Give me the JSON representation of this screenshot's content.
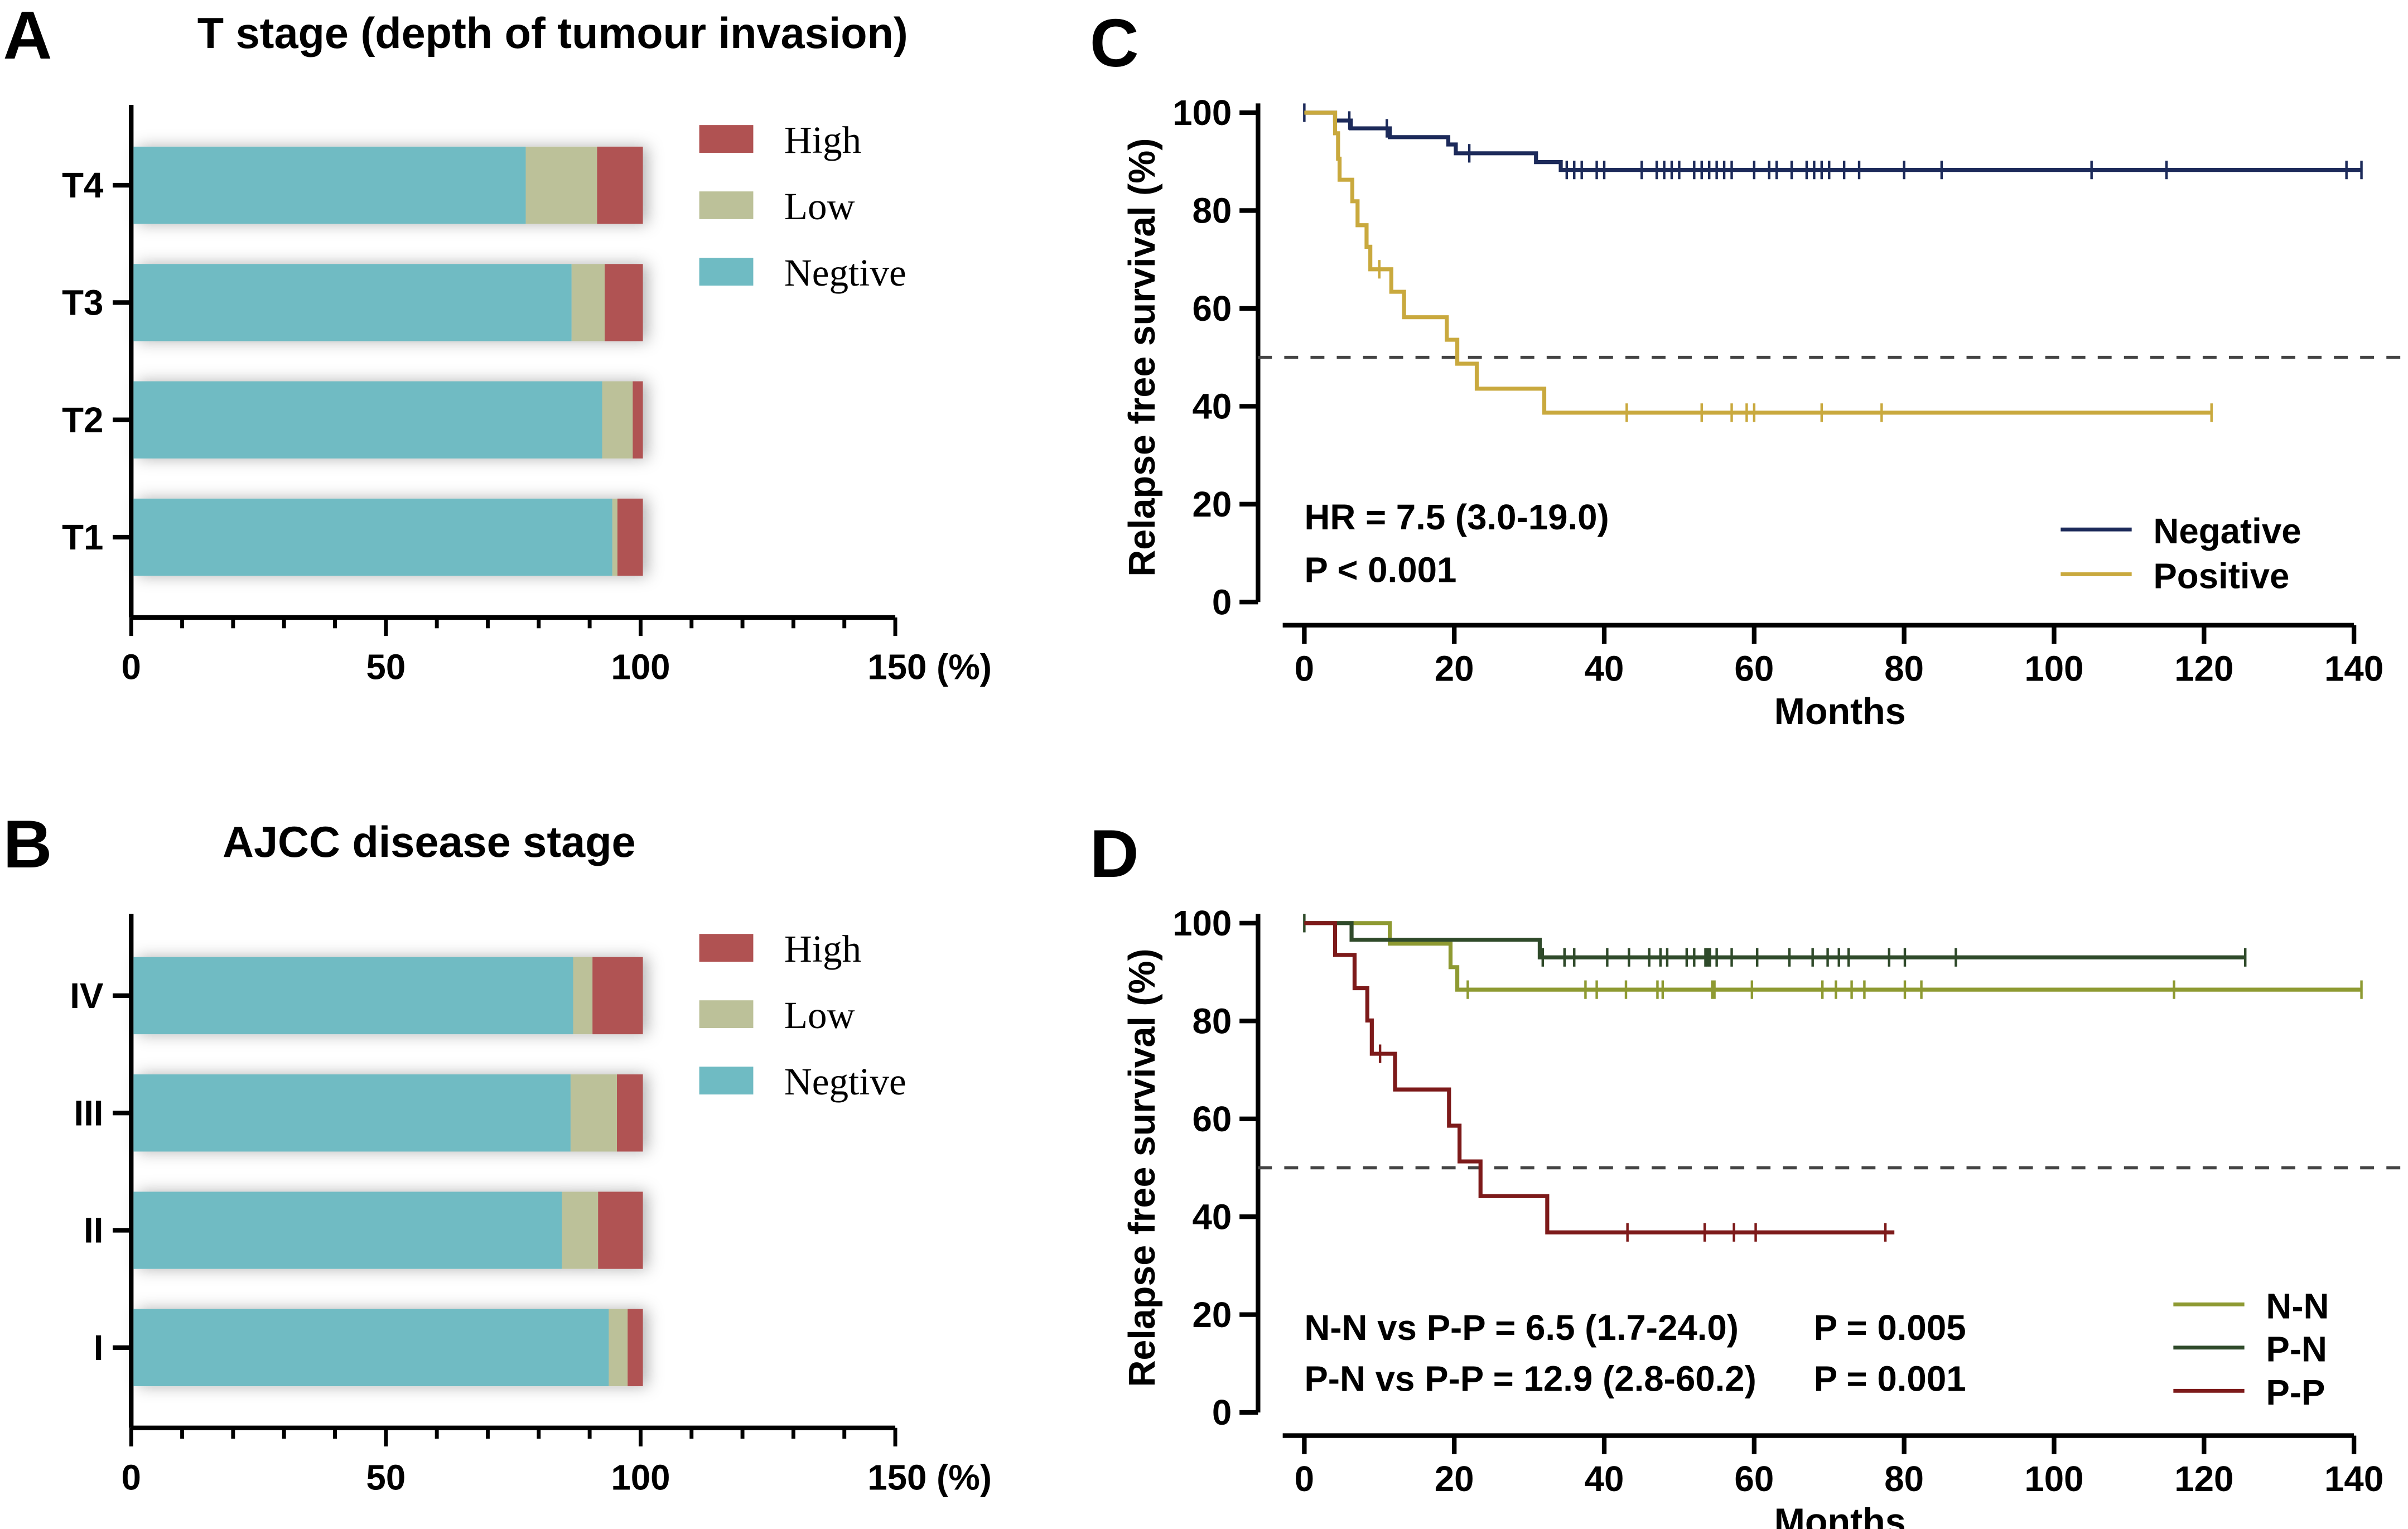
{
  "chart_data": [
    {
      "type": "bar",
      "orientation": "horizontal",
      "stacked": true,
      "panel_label": "A",
      "title": "T stage (depth of tumour invasion)",
      "categories": [
        "T4",
        "T3",
        "T2",
        "T1"
      ],
      "series": [
        {
          "name": "Negtive",
          "color": "#6fbbc3",
          "values": [
            77,
            86,
            92,
            94
          ]
        },
        {
          "name": "Low",
          "color": "#bcc199",
          "values": [
            14,
            6.5,
            6,
            1
          ]
        },
        {
          "name": "High",
          "color": "#b05252",
          "values": [
            9,
            7.5,
            2,
            5
          ]
        }
      ],
      "legend": [
        "High",
        "Low",
        "Negtive"
      ],
      "legend_position": "top-right",
      "xlim": [
        0,
        150
      ],
      "xticks": [
        0,
        50,
        100,
        150
      ],
      "xtick_labels": [
        "0",
        "50",
        "100",
        "150 (%)"
      ],
      "xlabel": "",
      "ylabel": ""
    },
    {
      "type": "bar",
      "orientation": "horizontal",
      "stacked": true,
      "panel_label": "B",
      "title": "AJCC disease stage",
      "categories": [
        "IV",
        "III",
        "II",
        "I"
      ],
      "series": [
        {
          "name": "Negtive",
          "color": "#6fbbc3",
          "values": [
            86.3,
            85.8,
            84.1,
            93.3
          ]
        },
        {
          "name": "Low",
          "color": "#bcc199",
          "values": [
            3.8,
            9.1,
            7.1,
            3.7
          ]
        },
        {
          "name": "High",
          "color": "#b05252",
          "values": [
            9.9,
            5.1,
            8.8,
            3.0
          ]
        }
      ],
      "legend": [
        "High",
        "Low",
        "Negtive"
      ],
      "legend_position": "top-right",
      "xlim": [
        0,
        150
      ],
      "xticks": [
        0,
        50,
        100,
        150
      ],
      "xtick_labels": [
        "0",
        "50",
        "100",
        "150 (%)"
      ],
      "xlabel": "",
      "ylabel": ""
    },
    {
      "type": "line",
      "subtype": "kaplan-meier",
      "panel_label": "C",
      "xlabel": "Months",
      "ylabel": "Relapse free survival (%)",
      "xlim": [
        0,
        140
      ],
      "ylim": [
        0,
        100
      ],
      "xticks": [
        0,
        20,
        40,
        60,
        80,
        100,
        120,
        140
      ],
      "yticks": [
        0,
        20,
        40,
        60,
        80,
        100
      ],
      "reference_line": 50,
      "annotations": [
        "HR = 7.5 (3.0-19.0)",
        "P < 0.001"
      ],
      "legend_position": "bottom-right",
      "series": [
        {
          "name": "Negative",
          "color": "#1c2a5a",
          "steps": [
            [
              4.1,
              98.4
            ],
            [
              6.2,
              96.8
            ],
            [
              11.4,
              95
            ],
            [
              19.2,
              93.5
            ],
            [
              20.2,
              91.7
            ],
            [
              30.9,
              89.9
            ],
            [
              34.2,
              88.3
            ]
          ],
          "end": 141,
          "censored": [
            0,
            6,
            11,
            22,
            35,
            36,
            37,
            39,
            40,
            45,
            47,
            48,
            49,
            50,
            52,
            53,
            54,
            55,
            56,
            57,
            60,
            62,
            63,
            65,
            67,
            68,
            69,
            70,
            72,
            74,
            80,
            85,
            105,
            115,
            139,
            141
          ]
        },
        {
          "name": "Positive",
          "color": "#c9a93e",
          "steps": [
            [
              4.1,
              95.8
            ],
            [
              4.5,
              90.6
            ],
            [
              4.7,
              86.3
            ],
            [
              6.4,
              81.9
            ],
            [
              7.1,
              77
            ],
            [
              8.3,
              72.6
            ],
            [
              8.8,
              68
            ],
            [
              11.6,
              63.4
            ],
            [
              13.3,
              58.2
            ],
            [
              19,
              53.6
            ],
            [
              20.4,
              48.7
            ],
            [
              23,
              43.6
            ],
            [
              32,
              38.7
            ]
          ],
          "end": 121,
          "censored": [
            10,
            43,
            53,
            57,
            59,
            60,
            69,
            77,
            121
          ]
        }
      ]
    },
    {
      "type": "line",
      "subtype": "kaplan-meier",
      "panel_label": "D",
      "xlabel": "Months",
      "ylabel": "Relapse free survival (%)",
      "xlim": [
        0,
        140
      ],
      "ylim": [
        0,
        100
      ],
      "xticks": [
        0,
        20,
        40,
        60,
        80,
        100,
        120,
        140
      ],
      "yticks": [
        0,
        20,
        40,
        60,
        80,
        100
      ],
      "reference_line": 50,
      "annotations": [
        "N-N vs P-P = 6.5 (1.7-24.0)",
        "P = 0.005",
        "P-N vs P-P = 12.9 (2.8-60.2)",
        "P = 0.001"
      ],
      "legend_position": "bottom-right",
      "series": [
        {
          "name": "N-N",
          "color": "#8e9a32",
          "steps": [
            [
              11.4,
              95.8
            ],
            [
              19.5,
              91
            ],
            [
              20.4,
              86.4
            ]
          ],
          "end": 141,
          "censored": [
            21.8,
            37.5,
            39,
            42.9,
            47.1,
            47.8,
            54.4,
            54.7,
            59.7,
            69.1,
            70.9,
            73,
            74.7,
            80.1,
            82.3,
            116,
            141
          ]
        },
        {
          "name": "P-N",
          "color": "#2f4a2a",
          "steps": [
            [
              6.3,
              96.6
            ],
            [
              31.4,
              93
            ]
          ],
          "end": 125.5,
          "censored": [
            0,
            31.8,
            34.7,
            36,
            40.4,
            43.3,
            46,
            47.5,
            48.4,
            51,
            52,
            53.5,
            53.8,
            54.1,
            55,
            57,
            60.4,
            64.7,
            67.8,
            69.8,
            71.3,
            72.6,
            78,
            80.1,
            86.9,
            125.5
          ]
        },
        {
          "name": "P-P",
          "color": "#7d1a1a",
          "steps": [
            [
              4.1,
              93.5
            ],
            [
              6.7,
              86.7
            ],
            [
              8.4,
              80.1
            ],
            [
              9,
              73.3
            ],
            [
              12.1,
              66
            ],
            [
              19.3,
              58.6
            ],
            [
              20.7,
              51.3
            ],
            [
              23.5,
              44.2
            ],
            [
              32.4,
              36.8
            ]
          ],
          "end": 78.7,
          "censored": [
            10.1,
            43.1,
            53.4,
            57.3,
            60.2,
            77.5
          ]
        }
      ]
    }
  ]
}
